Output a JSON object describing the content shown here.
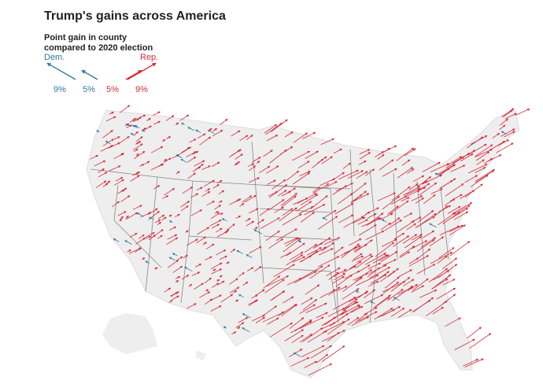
{
  "header": {
    "title": "Trump's gains across America",
    "subtitle_lines": [
      "Point gain in county",
      "compared to 2020 election"
    ]
  },
  "legend": {
    "dem": {
      "label": "Dem.",
      "color": "#2b7c9e",
      "items": [
        {
          "value": 9,
          "label": "9%"
        },
        {
          "value": 5,
          "label": "5%"
        }
      ]
    },
    "rep": {
      "label": "Rep.",
      "color": "#d42b3a",
      "items": [
        {
          "value": 5,
          "label": "5%"
        },
        {
          "value": 9,
          "label": "9%"
        }
      ]
    }
  }
}
